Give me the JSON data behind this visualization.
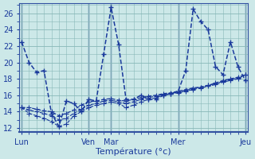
{
  "xlabel": "Température (°c)",
  "background_color": "#cce8e8",
  "line_color": "#1a3a9c",
  "grid_color": "#88b8b8",
  "ylim": [
    11.5,
    27.2
  ],
  "yticks": [
    12,
    14,
    16,
    18,
    20,
    22,
    24,
    26
  ],
  "x_tick_labels": [
    "Lun",
    "Ven",
    "Mar",
    "Mer",
    "Jeu"
  ],
  "x_tick_positions": [
    0,
    9,
    12,
    21,
    30
  ],
  "xlim": [
    -0.3,
    30.3
  ],
  "num_points": 31,
  "series1": [
    22.5,
    20.0,
    18.8,
    19.0,
    13.8,
    12.2,
    15.3,
    15.0,
    14.0,
    15.5,
    15.3,
    21.0,
    26.7,
    22.2,
    15.5,
    15.5,
    16.0,
    15.5,
    15.5,
    16.0,
    16.2,
    16.5,
    19.0,
    26.5,
    25.0,
    24.0,
    19.5,
    18.5,
    22.5,
    19.5,
    17.8
  ],
  "series2": [
    14.5,
    14.5,
    14.3,
    14.1,
    14.0,
    13.5,
    13.8,
    14.2,
    14.8,
    15.2,
    15.3,
    15.5,
    15.6,
    15.4,
    15.3,
    15.5,
    15.7,
    15.9,
    16.0,
    16.2,
    16.3,
    16.5,
    16.7,
    16.9,
    17.0,
    17.2,
    17.5,
    17.8,
    18.0,
    18.2,
    18.5
  ],
  "series3": [
    14.5,
    14.2,
    14.0,
    13.8,
    13.5,
    13.0,
    13.2,
    13.8,
    14.3,
    14.8,
    15.0,
    15.3,
    15.4,
    15.2,
    15.0,
    15.2,
    15.5,
    15.7,
    15.9,
    16.1,
    16.2,
    16.4,
    16.6,
    16.8,
    17.0,
    17.2,
    17.4,
    17.7,
    17.9,
    18.1,
    18.5
  ],
  "series4": [
    14.5,
    13.8,
    13.5,
    13.2,
    12.8,
    12.2,
    12.5,
    13.5,
    14.0,
    14.5,
    14.8,
    15.0,
    15.2,
    15.0,
    14.5,
    14.8,
    15.2,
    15.5,
    15.7,
    16.0,
    16.2,
    16.3,
    16.5,
    16.7,
    16.9,
    17.1,
    17.3,
    17.6,
    17.8,
    18.0,
    18.5
  ],
  "vline_positions": [
    0,
    9,
    12,
    21,
    30
  ]
}
